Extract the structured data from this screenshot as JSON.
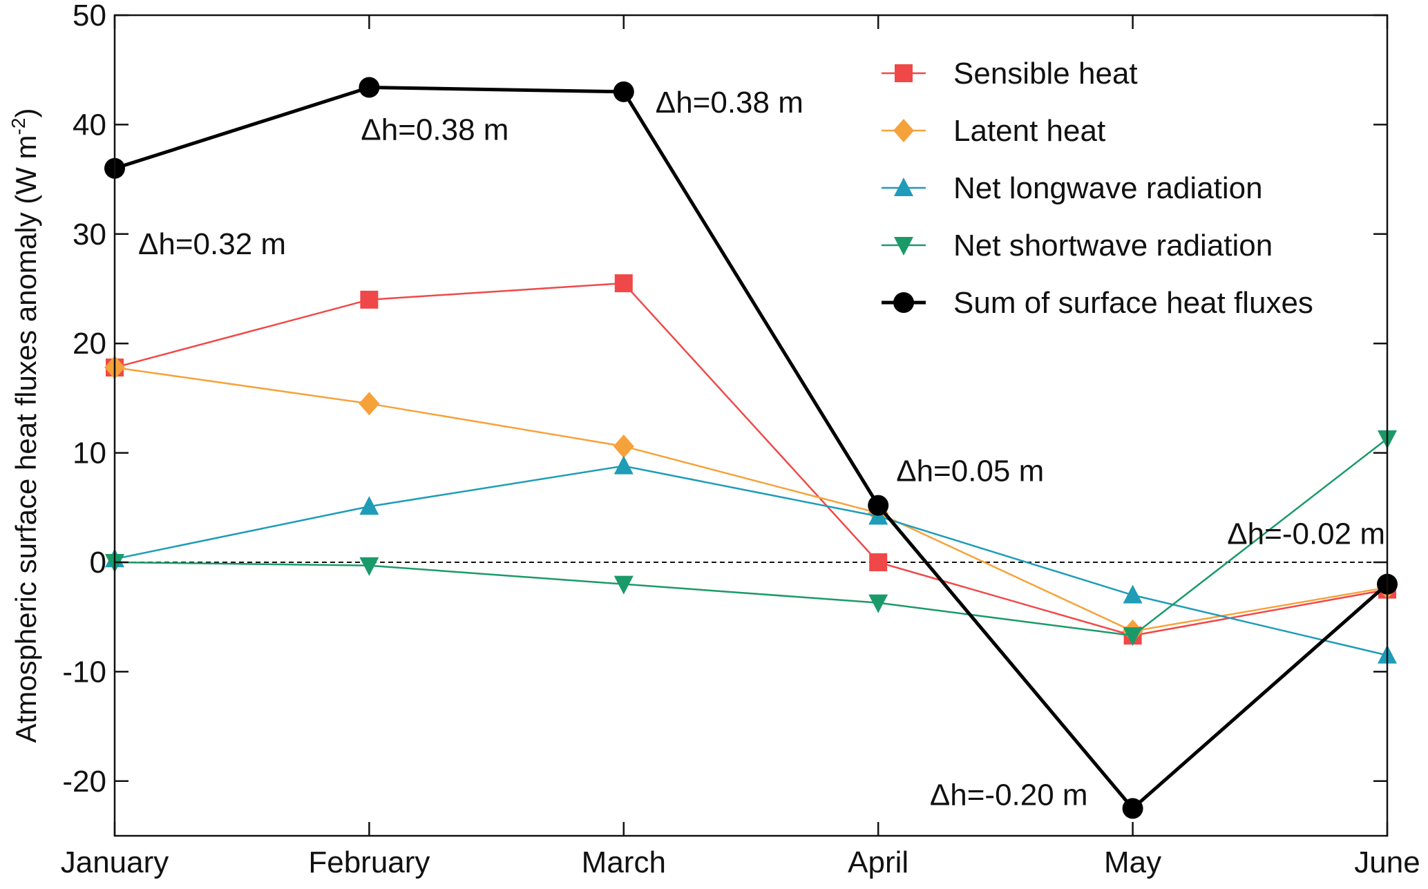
{
  "chart_data": {
    "type": "line",
    "title": "",
    "xlabel": "",
    "ylabel": "Atmospheric surface heat fluxes anomaly (W m",
    "ylabel_superscript": "-2",
    "ylabel_close": ")",
    "categories": [
      "January",
      "February",
      "March",
      "April",
      "May",
      "June"
    ],
    "ylim": [
      -25,
      50
    ],
    "yticks": [
      -20,
      -10,
      0,
      10,
      20,
      30,
      40,
      50
    ],
    "zero_line": "dashed",
    "grid": false,
    "legend_position": "top-right",
    "series": [
      {
        "name": "Sensible heat",
        "color": "#f04848",
        "marker": "square",
        "values": [
          17.8,
          24.0,
          25.5,
          0.0,
          -6.7,
          -2.5
        ]
      },
      {
        "name": "Latent heat",
        "color": "#f6a23a",
        "marker": "diamond",
        "values": [
          17.8,
          14.5,
          10.6,
          4.5,
          -6.3,
          -2.3
        ]
      },
      {
        "name": "Net longwave radiation",
        "color": "#1e9cb8",
        "marker": "triangle-up",
        "values": [
          0.3,
          5.1,
          8.8,
          4.2,
          -3.0,
          -8.5
        ]
      },
      {
        "name": "Net shortwave radiation",
        "color": "#1a9a68",
        "marker": "triangle-down",
        "values": [
          0.0,
          -0.3,
          -2.0,
          -3.7,
          -6.7,
          11.3
        ]
      },
      {
        "name": "Sum of surface heat fluxes",
        "color": "#000000",
        "marker": "circle",
        "values": [
          36.0,
          43.4,
          43.0,
          5.2,
          -22.5,
          -2.0
        ]
      }
    ],
    "annotations": [
      "Δh=0.32 m",
      "Δh=0.38 m",
      "Δh=0.38 m",
      "Δh=0.05 m",
      "Δh=-0.20 m",
      "Δh=-0.02 m"
    ]
  }
}
